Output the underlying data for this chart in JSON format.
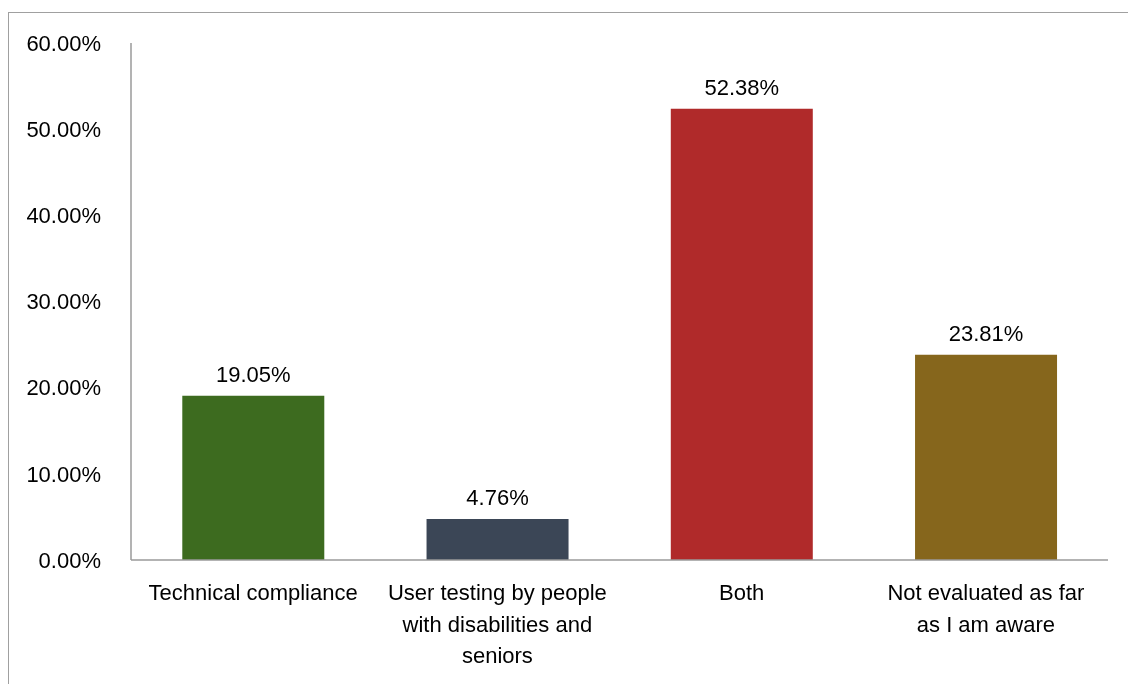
{
  "chart_data": {
    "type": "bar",
    "categories": [
      "Technical compliance",
      "User testing by people with disabilities and seniors",
      "Both",
      "Not evaluated as far as I am aware"
    ],
    "values": [
      19.05,
      4.76,
      52.38,
      23.81
    ],
    "colors": [
      "#3d6b1f",
      "#3b4656",
      "#b02a2a",
      "#86661c"
    ],
    "value_labels": [
      "19.05%",
      "4.76%",
      "52.38%",
      "23.81%"
    ],
    "ylim": [
      0,
      60
    ],
    "yticks": [
      {
        "value": 0,
        "label": "0.00%"
      },
      {
        "value": 10,
        "label": "10.00%"
      },
      {
        "value": 20,
        "label": "20.00%"
      },
      {
        "value": 30,
        "label": "30.00%"
      },
      {
        "value": 40,
        "label": "40.00%"
      },
      {
        "value": 50,
        "label": "50.00%"
      },
      {
        "value": 60,
        "label": "60.00%"
      }
    ]
  }
}
